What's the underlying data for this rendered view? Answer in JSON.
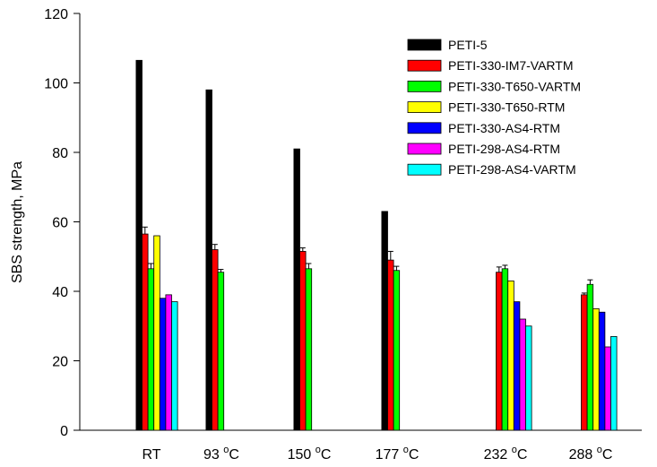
{
  "chart_data": {
    "type": "bar",
    "title": "",
    "xlabel": "",
    "ylabel": "SBS strength, MPa",
    "ylim": [
      0,
      120
    ],
    "yticks": [
      0,
      20,
      40,
      60,
      80,
      100,
      120
    ],
    "grid": false,
    "legend_position": "top-right",
    "categories": [
      {
        "label": "RT",
        "base": "RT",
        "sup": "",
        "unit": ""
      },
      {
        "label": "93 oC",
        "base": "93 ",
        "sup": "o",
        "unit": "C"
      },
      {
        "label": "150 oC",
        "base": "150 ",
        "sup": "o",
        "unit": "C"
      },
      {
        "label": "177 oC",
        "base": "177 ",
        "sup": "o",
        "unit": "C"
      },
      {
        "label": "232 oC",
        "base": "232 ",
        "sup": "o",
        "unit": "C"
      },
      {
        "label": "288 oC",
        "base": "288 ",
        "sup": "o",
        "unit": "C"
      }
    ],
    "series": [
      {
        "name": "PETI-5",
        "color": "#000000",
        "values": [
          106.5,
          98,
          81,
          63,
          null,
          null
        ],
        "errors": [
          null,
          null,
          null,
          null,
          null,
          null
        ]
      },
      {
        "name": "PETI-330-IM7-VARTM",
        "color": "#ff0000",
        "values": [
          56.5,
          52,
          51.5,
          49,
          45.5,
          39
        ],
        "errors": [
          2,
          1.5,
          1,
          2.5,
          1.5,
          0.5
        ]
      },
      {
        "name": "PETI-330-T650-VARTM",
        "color": "#00ff00",
        "values": [
          46.5,
          45.5,
          46.5,
          46,
          46.5,
          42
        ],
        "errors": [
          1.5,
          0.8,
          1.5,
          1.2,
          1,
          1.3
        ]
      },
      {
        "name": "PETI-330-T650-RTM",
        "color": "#ffff00",
        "values": [
          56,
          null,
          null,
          null,
          43,
          35
        ],
        "errors": [
          null,
          null,
          null,
          null,
          null,
          null
        ]
      },
      {
        "name": "PETI-330-AS4-RTM",
        "color": "#0000ff",
        "values": [
          38,
          null,
          null,
          null,
          37,
          34
        ],
        "errors": [
          null,
          null,
          null,
          null,
          null,
          null
        ]
      },
      {
        "name": "PETI-298-AS4-RTM",
        "color": "#ff00ff",
        "values": [
          39,
          null,
          null,
          null,
          32,
          24
        ],
        "errors": [
          null,
          null,
          null,
          null,
          null,
          null
        ]
      },
      {
        "name": "PETI-298-AS4-VARTM",
        "color": "#00ffff",
        "values": [
          37,
          null,
          null,
          null,
          30,
          27
        ],
        "errors": [
          null,
          null,
          null,
          null,
          null,
          null
        ]
      }
    ]
  }
}
